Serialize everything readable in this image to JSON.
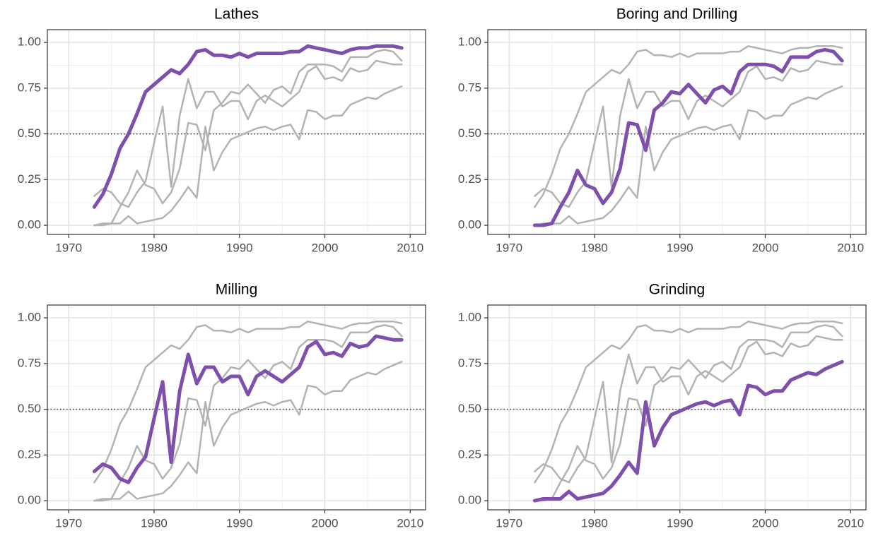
{
  "chart_data": {
    "type": "line",
    "x": [
      1973,
      1974,
      1975,
      1976,
      1977,
      1978,
      1979,
      1980,
      1981,
      1982,
      1983,
      1984,
      1985,
      1986,
      1987,
      1988,
      1989,
      1990,
      1991,
      1992,
      1993,
      1994,
      1995,
      1996,
      1997,
      1998,
      1999,
      2000,
      2001,
      2002,
      2003,
      2004,
      2005,
      2006,
      2007,
      2008,
      2009
    ],
    "series": [
      {
        "name": "Lathes",
        "color": "#7e4fad",
        "values": [
          0.1,
          0.17,
          0.28,
          0.42,
          0.5,
          0.61,
          0.73,
          0.77,
          0.81,
          0.85,
          0.83,
          0.88,
          0.95,
          0.96,
          0.93,
          0.93,
          0.92,
          0.94,
          0.92,
          0.94,
          0.94,
          0.94,
          0.94,
          0.95,
          0.95,
          0.98,
          0.97,
          0.96,
          0.95,
          0.94,
          0.96,
          0.97,
          0.97,
          0.98,
          0.98,
          0.98,
          0.97
        ]
      },
      {
        "name": "Boring and Drilling",
        "color": "#7e4fad",
        "values": [
          0.0,
          0.0,
          0.01,
          0.1,
          0.18,
          0.3,
          0.22,
          0.2,
          0.12,
          0.18,
          0.31,
          0.56,
          0.55,
          0.41,
          0.63,
          0.67,
          0.73,
          0.72,
          0.77,
          0.72,
          0.67,
          0.74,
          0.76,
          0.72,
          0.84,
          0.88,
          0.88,
          0.88,
          0.87,
          0.84,
          0.92,
          0.92,
          0.92,
          0.95,
          0.96,
          0.95,
          0.9
        ]
      },
      {
        "name": "Milling",
        "color": "#7e4fad",
        "values": [
          0.16,
          0.2,
          0.18,
          0.12,
          0.1,
          0.18,
          0.24,
          0.45,
          0.65,
          0.21,
          0.6,
          0.8,
          0.64,
          0.73,
          0.73,
          0.65,
          0.68,
          0.68,
          0.58,
          0.68,
          0.71,
          0.68,
          0.65,
          0.69,
          0.73,
          0.84,
          0.87,
          0.8,
          0.81,
          0.79,
          0.86,
          0.84,
          0.85,
          0.9,
          0.89,
          0.88,
          0.88
        ]
      },
      {
        "name": "Grinding",
        "color": "#7e4fad",
        "values": [
          0.0,
          0.01,
          0.01,
          0.01,
          0.05,
          0.01,
          0.02,
          0.03,
          0.04,
          0.08,
          0.14,
          0.21,
          0.15,
          0.54,
          0.3,
          0.4,
          0.47,
          0.49,
          0.51,
          0.53,
          0.54,
          0.52,
          0.54,
          0.55,
          0.47,
          0.63,
          0.62,
          0.58,
          0.6,
          0.6,
          0.66,
          0.68,
          0.7,
          0.69,
          0.72,
          0.74,
          0.76
        ]
      }
    ],
    "other_color": "#b3b3b3",
    "reference_line": 0.5,
    "xlim": [
      1967.5,
      2011.8
    ],
    "ylim": [
      -0.05,
      1.07
    ],
    "xticks": [
      1970,
      1980,
      1990,
      2000,
      2010
    ],
    "yticks": [
      {
        "value": 0,
        "label": "0.00"
      },
      {
        "value": 0.25,
        "label": "0.25"
      },
      {
        "value": 0.5,
        "label": "0.50"
      },
      {
        "value": 0.75,
        "label": "0.75"
      },
      {
        "value": 1,
        "label": "1.00"
      }
    ],
    "grid": true
  }
}
